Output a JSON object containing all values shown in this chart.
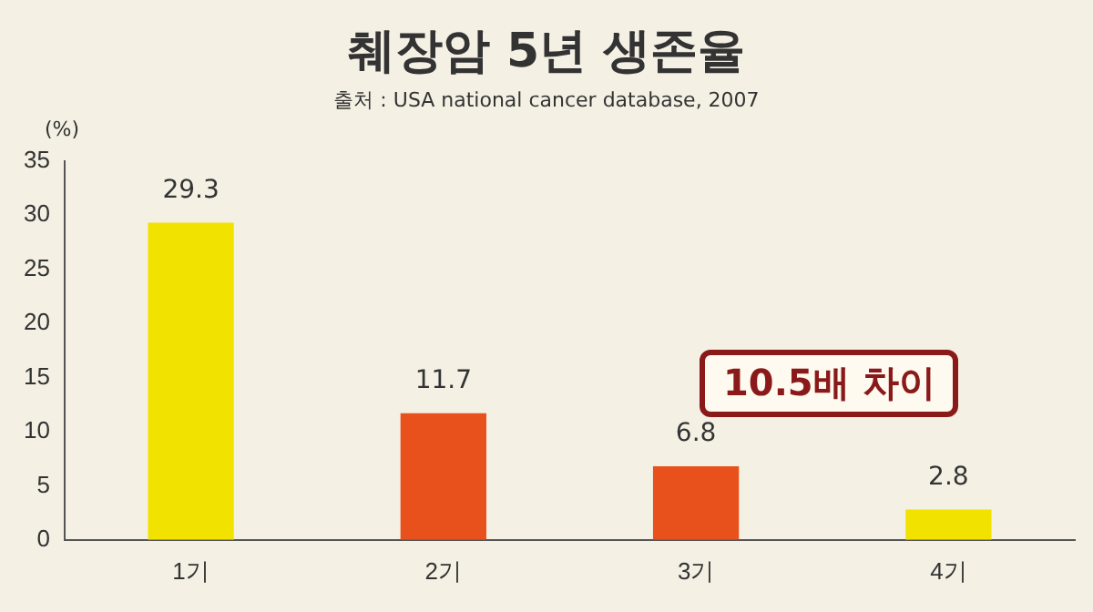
{
  "chart_data": {
    "type": "bar",
    "title": "췌장암 5년 생존율",
    "subtitle": "출처 : USA national cancer database, 2007",
    "ylabel": "(%)",
    "categories": [
      "1기",
      "2기",
      "3기",
      "4기"
    ],
    "values": [
      29.3,
      11.7,
      6.8,
      2.8
    ],
    "colors": [
      "#f2e200",
      "#e8501c",
      "#e8501c",
      "#f2e200"
    ],
    "ylim": [
      0,
      35
    ],
    "yticks": [
      0,
      5,
      10,
      15,
      20,
      25,
      30,
      35
    ],
    "grid": false,
    "legend": false,
    "data_labels": true,
    "annotations": [
      "10.5배 차이"
    ]
  }
}
